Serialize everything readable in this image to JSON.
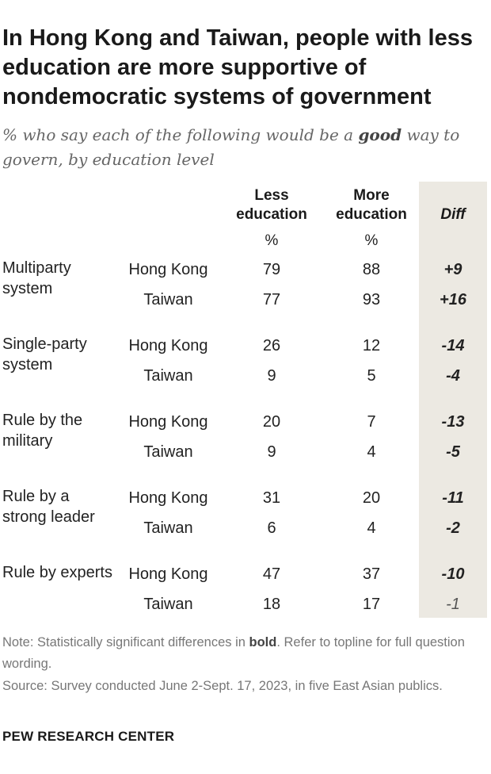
{
  "title": "In Hong Kong and Taiwan, people with less education are more supportive of nondemocratic systems of government",
  "subtitle": {
    "before": "% who say each of the following would be a ",
    "emphasis": "good",
    "after": " way to govern, by education level"
  },
  "columns": {
    "less_line1": "Less",
    "less_line2": "education",
    "more_line1": "More",
    "more_line2": "education",
    "diff": "Diff",
    "pct": "%"
  },
  "chart_data": {
    "type": "table",
    "columns": [
      "Less education",
      "More education",
      "Diff"
    ],
    "rows": [
      {
        "system": "Multiparty system",
        "public": "Hong Kong",
        "less": 79,
        "more": 88,
        "diff": "+9",
        "significant": true
      },
      {
        "system": "",
        "public": "Taiwan",
        "less": 77,
        "more": 93,
        "diff": "+16",
        "significant": true
      },
      {
        "system": "Single-party system",
        "public": "Hong Kong",
        "less": 26,
        "more": 12,
        "diff": "-14",
        "significant": true
      },
      {
        "system": "",
        "public": "Taiwan",
        "less": 9,
        "more": 5,
        "diff": "-4",
        "significant": true
      },
      {
        "system": "Rule by the military",
        "public": "Hong Kong",
        "less": 20,
        "more": 7,
        "diff": "-13",
        "significant": true
      },
      {
        "system": "",
        "public": "Taiwan",
        "less": 9,
        "more": 4,
        "diff": "-5",
        "significant": true
      },
      {
        "system": "Rule by a strong leader",
        "public": "Hong Kong",
        "less": 31,
        "more": 20,
        "diff": "-11",
        "significant": true
      },
      {
        "system": "",
        "public": "Taiwan",
        "less": 6,
        "more": 4,
        "diff": "-2",
        "significant": true
      },
      {
        "system": "Rule by experts",
        "public": "Hong Kong",
        "less": 47,
        "more": 37,
        "diff": "-10",
        "significant": true
      },
      {
        "system": "",
        "public": "Taiwan",
        "less": 18,
        "more": 17,
        "diff": "-1",
        "significant": false
      }
    ]
  },
  "note": {
    "before": "Note: Statistically significant differences in ",
    "emphasis": "bold",
    "after": ". Refer to topline for full question wording."
  },
  "source": "Source: Survey conducted June 2-Sept. 17, 2023, in five East Asian publics.",
  "brand": "PEW RESEARCH CENTER"
}
